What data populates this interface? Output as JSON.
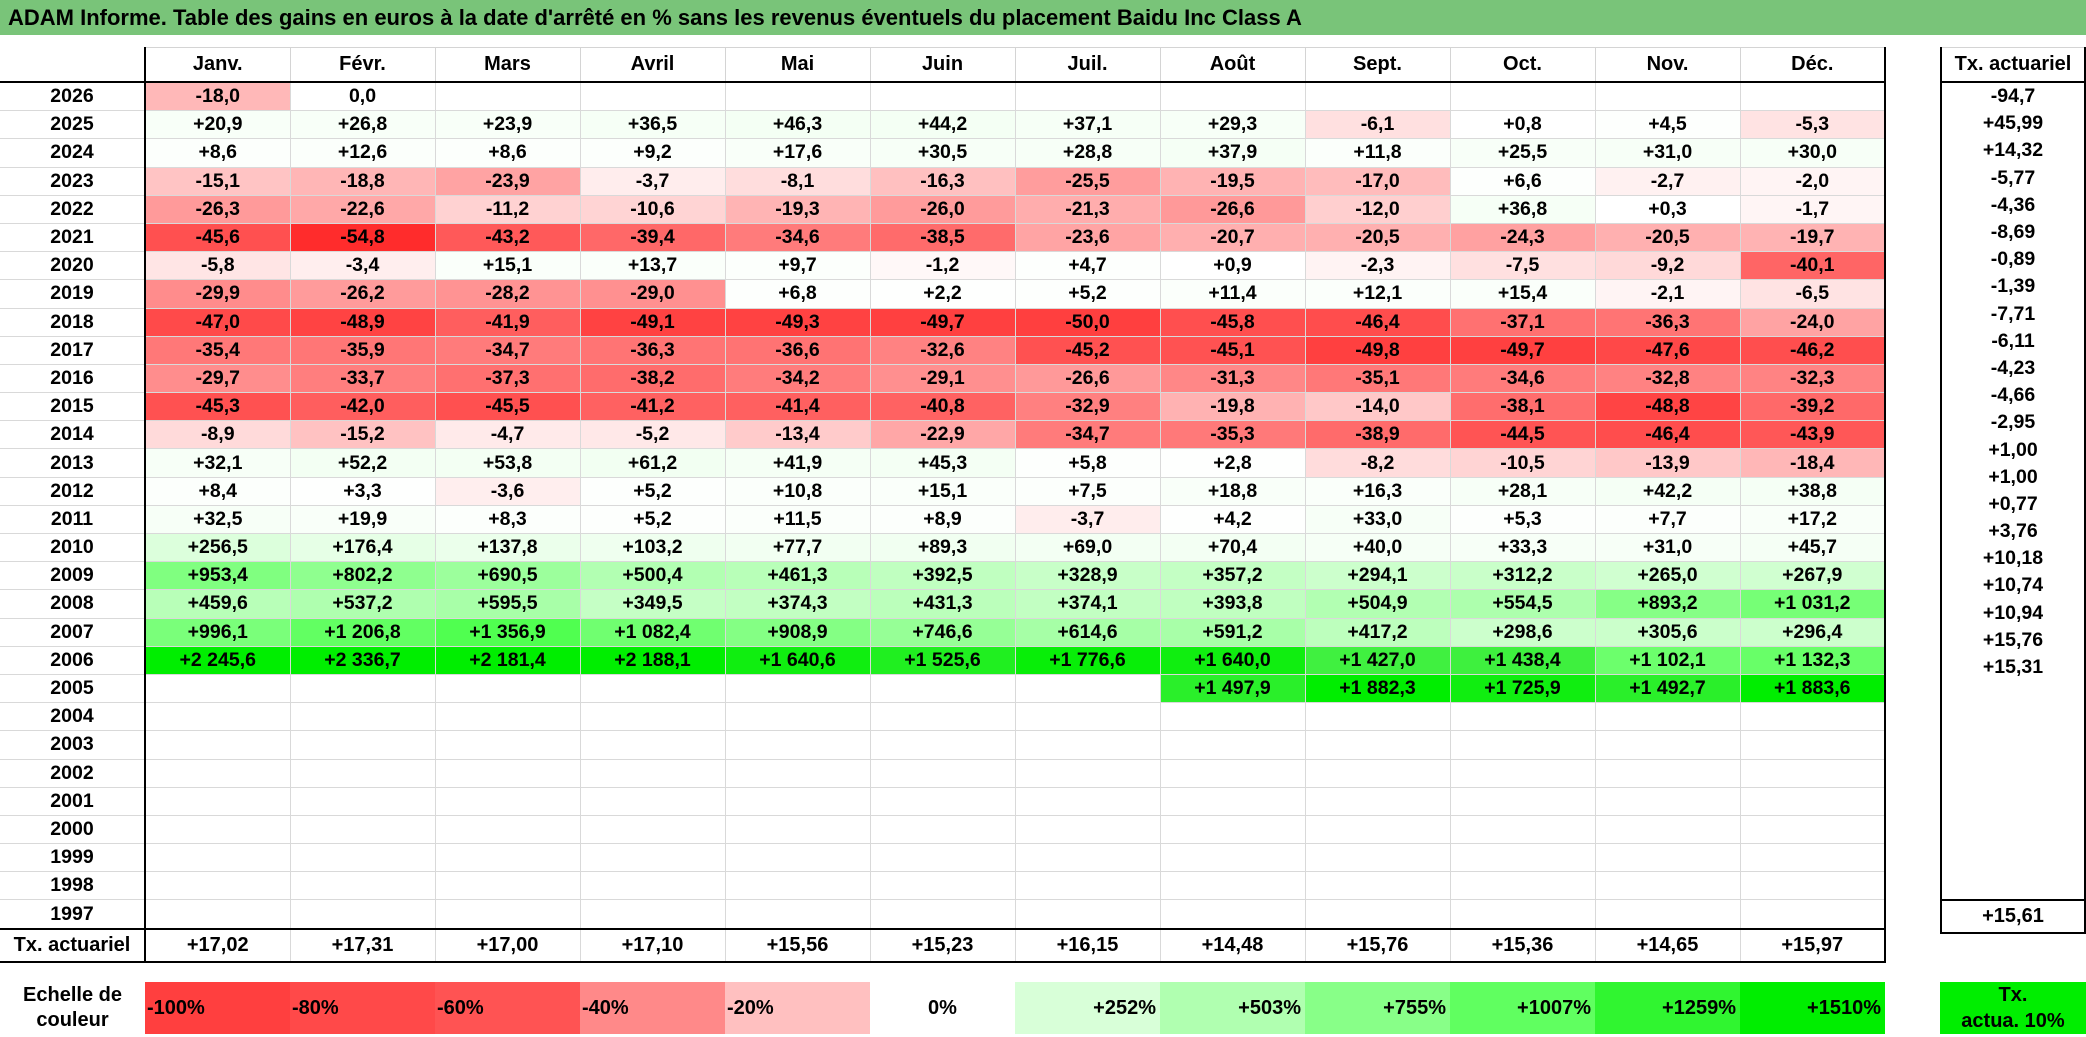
{
  "title": "ADAM Informe. Table des gains en euros à la date d'arrêté en % sans les revenus éventuels du placement Baidu Inc Class A",
  "months": [
    "Janv.",
    "Févr.",
    "Mars",
    "Avril",
    "Mai",
    "Juin",
    "Juil.",
    "Août",
    "Sept.",
    "Oct.",
    "Nov.",
    "Déc."
  ],
  "rate_header": "Tx. actuariel",
  "rows": [
    {
      "year": "2026",
      "cells": [
        "-18,0",
        "0,0",
        "",
        "",
        "",
        "",
        "",
        "",
        "",
        "",
        "",
        ""
      ],
      "colors": [
        "#ffb8b8",
        "#ffffff",
        "",
        "",
        "",
        "",
        "",
        "",
        "",
        "",
        "",
        ""
      ],
      "rate": "-94,7"
    },
    {
      "year": "2025",
      "cells": [
        "+20,9",
        "+26,8",
        "+23,9",
        "+36,5",
        "+46,3",
        "+44,2",
        "+37,1",
        "+29,3",
        "-6,1",
        "+0,8",
        "+4,5",
        "-5,3"
      ],
      "colors": [
        "#f8fff8",
        "#f8fff8",
        "#f8fff8",
        "#f6fff6",
        "#f4fff4",
        "#f4fff4",
        "#f6fff6",
        "#f7fff7",
        "#ffe0e0",
        "#ffffff",
        "#fdfffd",
        "#ffe3e3"
      ],
      "rate": "+45,99"
    },
    {
      "year": "2024",
      "cells": [
        "+8,6",
        "+12,6",
        "+8,6",
        "+9,2",
        "+17,6",
        "+30,5",
        "+28,8",
        "+37,9",
        "+11,8",
        "+25,5",
        "+31,0",
        "+30,0"
      ],
      "colors": [
        "#fcfffc",
        "#fbfffb",
        "#fcfffc",
        "#fcfffc",
        "#f9fff9",
        "#f7fff7",
        "#f7fff7",
        "#f5fff5",
        "#fbfffb",
        "#f8fff8",
        "#f7fff7",
        "#f7fff7"
      ],
      "rate": "+14,32"
    },
    {
      "year": "2023",
      "cells": [
        "-15,1",
        "-18,8",
        "-23,9",
        "-3,7",
        "-8,1",
        "-16,3",
        "-25,5",
        "-19,5",
        "-17,0",
        "+6,6",
        "-2,7",
        "-2,0"
      ],
      "colors": [
        "#ffc4c4",
        "#ffb6b6",
        "#ffa3a3",
        "#ffeded",
        "#ffdddd",
        "#ffc0c0",
        "#ff9d9d",
        "#ffb3b3",
        "#ffbcbc",
        "#fdfffd",
        "#fff1f1",
        "#fff4f4"
      ],
      "rate": "-5,77"
    },
    {
      "year": "2022",
      "cells": [
        "-26,3",
        "-22,6",
        "-11,2",
        "-10,6",
        "-19,3",
        "-26,0",
        "-21,3",
        "-26,6",
        "-12,0",
        "+36,8",
        "+0,3",
        "-1,7"
      ],
      "colors": [
        "#ff9a9a",
        "#ffa8a8",
        "#ffd2d2",
        "#ffd4d4",
        "#ffb4b4",
        "#ff9b9b",
        "#ffadad",
        "#ff9999",
        "#ffcfcf",
        "#f6fff6",
        "#ffffff",
        "#fff5f5"
      ],
      "rate": "-4,36"
    },
    {
      "year": "2021",
      "cells": [
        "-45,6",
        "-54,8",
        "-43,2",
        "-39,4",
        "-34,6",
        "-38,5",
        "-23,6",
        "-20,7",
        "-20,5",
        "-24,3",
        "-20,5",
        "-19,7"
      ],
      "colors": [
        "#ff5050",
        "#ff2c2c",
        "#ff5959",
        "#ff6868",
        "#ff7b7b",
        "#ff6b6b",
        "#ffa4a4",
        "#ffafaf",
        "#ffb0b0",
        "#ffa1a1",
        "#ffb0b0",
        "#ffb3b3"
      ],
      "rate": "-8,69"
    },
    {
      "year": "2020",
      "cells": [
        "-5,8",
        "-3,4",
        "+15,1",
        "+13,7",
        "+9,7",
        "-1,2",
        "+4,7",
        "+0,9",
        "-2,3",
        "-7,5",
        "-9,2",
        "-40,1"
      ],
      "colors": [
        "#ffe5e5",
        "#ffeeee",
        "#fafffa",
        "#fafffa",
        "#fcfffc",
        "#fff8f8",
        "#fdfffd",
        "#ffffff",
        "#fff3f3",
        "#ffe0e0",
        "#ffd9d9",
        "#ff6565"
      ],
      "rate": "-0,89"
    },
    {
      "year": "2019",
      "cells": [
        "-29,9",
        "-26,2",
        "-28,2",
        "-29,0",
        "+6,8",
        "+2,2",
        "+5,2",
        "+11,4",
        "+12,1",
        "+15,4",
        "-2,1",
        "-6,5"
      ],
      "colors": [
        "#ff8c8c",
        "#ff9b9b",
        "#ff9393",
        "#ff9090",
        "#fdfffd",
        "#fefffe",
        "#fdfffd",
        "#fbfffb",
        "#fbfffb",
        "#fafffa",
        "#fff4f4",
        "#ffe3e3"
      ],
      "rate": "-1,39"
    },
    {
      "year": "2018",
      "cells": [
        "-47,0",
        "-48,9",
        "-41,9",
        "-49,1",
        "-49,3",
        "-49,7",
        "-50,0",
        "-45,8",
        "-46,4",
        "-37,1",
        "-36,3",
        "-24,0"
      ],
      "colors": [
        "#ff4a4a",
        "#ff4343",
        "#ff5e5e",
        "#ff4242",
        "#ff4242",
        "#ff4040",
        "#ff3f3f",
        "#ff4f4f",
        "#ff4d4d",
        "#ff7171",
        "#ff7474",
        "#ffa3a3"
      ],
      "rate": "-7,71"
    },
    {
      "year": "2017",
      "cells": [
        "-35,4",
        "-35,9",
        "-34,7",
        "-36,3",
        "-36,6",
        "-32,6",
        "-45,2",
        "-45,1",
        "-49,8",
        "-49,7",
        "-47,6",
        "-46,2"
      ],
      "colors": [
        "#ff7878",
        "#ff7676",
        "#ff7b7b",
        "#ff7474",
        "#ff7373",
        "#ff8282",
        "#ff5151",
        "#ff5252",
        "#ff4040",
        "#ff4040",
        "#ff4848",
        "#ff4e4e"
      ],
      "rate": "-6,11"
    },
    {
      "year": "2016",
      "cells": [
        "-29,7",
        "-33,7",
        "-37,3",
        "-38,2",
        "-34,2",
        "-29,1",
        "-26,6",
        "-31,3",
        "-35,1",
        "-34,6",
        "-32,8",
        "-32,3"
      ],
      "colors": [
        "#ff8d8d",
        "#ff7e7e",
        "#ff7070",
        "#ff6c6c",
        "#ff7c7c",
        "#ff8f8f",
        "#ff9999",
        "#ff8787",
        "#ff7878",
        "#ff7b7b",
        "#ff8282",
        "#ff8383"
      ],
      "rate": "-4,23"
    },
    {
      "year": "2015",
      "cells": [
        "-45,3",
        "-42,0",
        "-45,5",
        "-41,2",
        "-41,4",
        "-40,8",
        "-32,9",
        "-19,8",
        "-14,0",
        "-38,1",
        "-48,8",
        "-39,2"
      ],
      "colors": [
        "#ff5151",
        "#ff5e5e",
        "#ff5050",
        "#ff6161",
        "#ff6060",
        "#ff6262",
        "#ff8080",
        "#ffb2b2",
        "#ffc8c8",
        "#ff6d6d",
        "#ff4444",
        "#ff6969"
      ],
      "rate": "-4,66"
    },
    {
      "year": "2014",
      "cells": [
        "-8,9",
        "-15,2",
        "-4,7",
        "-5,2",
        "-13,4",
        "-22,9",
        "-34,7",
        "-35,3",
        "-38,9",
        "-44,5",
        "-46,4",
        "-43,9"
      ],
      "colors": [
        "#ffdada",
        "#ffc2c2",
        "#ffeaea",
        "#ffe8e8",
        "#ffcbcb",
        "#ffa7a7",
        "#ff7b7b",
        "#ff7979",
        "#ff6b6b",
        "#ff5454",
        "#ff4d4d",
        "#ff5757"
      ],
      "rate": "-2,95"
    },
    {
      "year": "2013",
      "cells": [
        "+32,1",
        "+52,2",
        "+53,8",
        "+61,2",
        "+41,9",
        "+45,3",
        "+5,8",
        "+2,8",
        "-8,2",
        "-10,5",
        "-13,9",
        "-18,4"
      ],
      "colors": [
        "#f7fff7",
        "#f3fff3",
        "#f3fff3",
        "#f2fff2",
        "#f5fff5",
        "#f4fff4",
        "#fdfffd",
        "#fefffe",
        "#ffdcdc",
        "#ffd4d4",
        "#ffc8c8",
        "#ffb7b7"
      ],
      "rate": "+1,00"
    },
    {
      "year": "2012",
      "cells": [
        "+8,4",
        "+3,3",
        "-3,6",
        "+5,2",
        "+10,8",
        "+15,1",
        "+7,5",
        "+18,8",
        "+16,3",
        "+28,1",
        "+42,2",
        "+38,8"
      ],
      "colors": [
        "#fcfffc",
        "#fefffe",
        "#ffeeee",
        "#fdfffd",
        "#fbfffb",
        "#fafffa",
        "#fcfffc",
        "#f9fff9",
        "#fafffa",
        "#f7fff7",
        "#f5fff5",
        "#f5fff5"
      ],
      "rate": "+1,00"
    },
    {
      "year": "2011",
      "cells": [
        "+32,5",
        "+19,9",
        "+8,3",
        "+5,2",
        "+11,5",
        "+8,9",
        "-3,7",
        "+4,2",
        "+33,0",
        "+5,3",
        "+7,7",
        "+17,2"
      ],
      "colors": [
        "#f7fff7",
        "#f9fff9",
        "#fcfffc",
        "#fdfffd",
        "#fbfffb",
        "#fcfffc",
        "#ffeded",
        "#fefffe",
        "#f7fff7",
        "#fdfffd",
        "#fcfffc",
        "#f9fff9"
      ],
      "rate": "+0,77"
    },
    {
      "year": "2010",
      "cells": [
        "+256,5",
        "+176,4",
        "+137,8",
        "+103,2",
        "+77,7",
        "+89,3",
        "+69,0",
        "+70,4",
        "+40,0",
        "+33,3",
        "+31,0",
        "+45,7"
      ],
      "colors": [
        "#dcffdc",
        "#e6ffe6",
        "#ebffeb",
        "#efffef",
        "#f2fff2",
        "#f1fff1",
        "#f3fff3",
        "#f3fff3",
        "#f6fff6",
        "#f7fff7",
        "#f7fff7",
        "#f5fff5"
      ],
      "rate": "+3,76"
    },
    {
      "year": "2009",
      "cells": [
        "+953,4",
        "+802,2",
        "+690,5",
        "+500,4",
        "+461,3",
        "+392,5",
        "+328,9",
        "+357,2",
        "+294,1",
        "+312,2",
        "+265,0",
        "+267,9"
      ],
      "colors": [
        "#80ff80",
        "#8fff8f",
        "#9cff9c",
        "#b2ffb2",
        "#b8ffb8",
        "#c0ffc0",
        "#c8ffc8",
        "#c4ffc4",
        "#ccffcc",
        "#c9ffc9",
        "#d0ffd0",
        "#d0ffd0"
      ],
      "rate": "+10,18"
    },
    {
      "year": "2008",
      "cells": [
        "+459,6",
        "+537,2",
        "+595,5",
        "+349,5",
        "+374,3",
        "+431,3",
        "+374,1",
        "+393,8",
        "+504,9",
        "+554,5",
        "+893,2",
        "+1 031,2"
      ],
      "colors": [
        "#b8ffb8",
        "#afffaf",
        "#a8ffa8",
        "#c5ffc5",
        "#c2ffc2",
        "#bbffbb",
        "#c2ffc2",
        "#c0ffc0",
        "#b2ffb2",
        "#adffad",
        "#86ff86",
        "#76ff76"
      ],
      "rate": "+10,74"
    },
    {
      "year": "2007",
      "cells": [
        "+996,1",
        "+1 206,8",
        "+1 356,9",
        "+1 082,4",
        "+908,9",
        "+746,6",
        "+614,6",
        "+591,2",
        "+417,2",
        "+298,6",
        "+305,6",
        "+296,4"
      ],
      "colors": [
        "#7aff7a",
        "#62ff62",
        "#50ff50",
        "#70ff70",
        "#84ff84",
        "#96ff96",
        "#a6ffa6",
        "#a8ffa8",
        "#bdffbd",
        "#ccffcc",
        "#cbffcb",
        "#ccffcc"
      ],
      "rate": "+10,94"
    },
    {
      "year": "2006",
      "cells": [
        "+2 245,6",
        "+2 336,7",
        "+2 181,4",
        "+2 188,1",
        "+1 640,6",
        "+1 525,6",
        "+1 776,6",
        "+1 640,0",
        "+1 427,0",
        "+1 438,4",
        "+1 102,1",
        "+1 132,3"
      ],
      "colors": [
        "#00ee00",
        "#00ee00",
        "#00ee00",
        "#00ee00",
        "#10ee10",
        "#20ef20",
        "#08ee08",
        "#10ee10",
        "#40f040",
        "#3ef03e",
        "#6cff6c",
        "#68ff68"
      ],
      "rate": "+15,76"
    },
    {
      "year": "2005",
      "cells": [
        "",
        "",
        "",
        "",
        "",
        "",
        "",
        "+1 497,9",
        "+1 882,3",
        "+1 725,9",
        "+1 492,7",
        "+1 883,6"
      ],
      "colors": [
        "",
        "",
        "",
        "",
        "",
        "",
        "",
        "#2aef2a",
        "#00ee00",
        "#10ee10",
        "#2aef2a",
        "#00ee00"
      ],
      "rate": "+15,31"
    },
    {
      "year": "2004",
      "cells": [
        "",
        "",
        "",
        "",
        "",
        "",
        "",
        "",
        "",
        "",
        "",
        ""
      ],
      "colors": [
        "",
        "",
        "",
        "",
        "",
        "",
        "",
        "",
        "",
        "",
        "",
        ""
      ],
      "rate": ""
    },
    {
      "year": "2003",
      "cells": [
        "",
        "",
        "",
        "",
        "",
        "",
        "",
        "",
        "",
        "",
        "",
        ""
      ],
      "colors": [
        "",
        "",
        "",
        "",
        "",
        "",
        "",
        "",
        "",
        "",
        "",
        ""
      ],
      "rate": ""
    },
    {
      "year": "2002",
      "cells": [
        "",
        "",
        "",
        "",
        "",
        "",
        "",
        "",
        "",
        "",
        "",
        ""
      ],
      "colors": [
        "",
        "",
        "",
        "",
        "",
        "",
        "",
        "",
        "",
        "",
        "",
        ""
      ],
      "rate": ""
    },
    {
      "year": "2001",
      "cells": [
        "",
        "",
        "",
        "",
        "",
        "",
        "",
        "",
        "",
        "",
        "",
        ""
      ],
      "colors": [
        "",
        "",
        "",
        "",
        "",
        "",
        "",
        "",
        "",
        "",
        "",
        ""
      ],
      "rate": ""
    },
    {
      "year": "2000",
      "cells": [
        "",
        "",
        "",
        "",
        "",
        "",
        "",
        "",
        "",
        "",
        "",
        ""
      ],
      "colors": [
        "",
        "",
        "",
        "",
        "",
        "",
        "",
        "",
        "",
        "",
        "",
        ""
      ],
      "rate": ""
    },
    {
      "year": "1999",
      "cells": [
        "",
        "",
        "",
        "",
        "",
        "",
        "",
        "",
        "",
        "",
        "",
        ""
      ],
      "colors": [
        "",
        "",
        "",
        "",
        "",
        "",
        "",
        "",
        "",
        "",
        "",
        ""
      ],
      "rate": ""
    },
    {
      "year": "1998",
      "cells": [
        "",
        "",
        "",
        "",
        "",
        "",
        "",
        "",
        "",
        "",
        "",
        ""
      ],
      "colors": [
        "",
        "",
        "",
        "",
        "",
        "",
        "",
        "",
        "",
        "",
        "",
        ""
      ],
      "rate": ""
    },
    {
      "year": "1997",
      "cells": [
        "",
        "",
        "",
        "",
        "",
        "",
        "",
        "",
        "",
        "",
        "",
        ""
      ],
      "colors": [
        "",
        "",
        "",
        "",
        "",
        "",
        "",
        "",
        "",
        "",
        "",
        ""
      ],
      "rate": ""
    }
  ],
  "totals": {
    "label": "Tx. actuariel",
    "cells": [
      "+17,02",
      "+17,31",
      "+17,00",
      "+17,10",
      "+15,56",
      "+15,23",
      "+16,15",
      "+14,48",
      "+15,76",
      "+15,36",
      "+14,65",
      "+15,97"
    ],
    "rate": "+15,61"
  },
  "legend": {
    "label": "Echelle de couleur",
    "items": [
      {
        "text": "-100%",
        "color": "#ff3f3f",
        "kind": "neg"
      },
      {
        "text": "-80%",
        "color": "#ff4949",
        "kind": "neg"
      },
      {
        "text": "-60%",
        "color": "#ff5353",
        "kind": "neg"
      },
      {
        "text": "-40%",
        "color": "#ff8989",
        "kind": "neg"
      },
      {
        "text": "-20%",
        "color": "#ffc0c0",
        "kind": "neg"
      },
      {
        "text": "0%",
        "color": "#ffffff",
        "kind": "zero"
      },
      {
        "text": "+252%",
        "color": "#d8ffd8",
        "kind": "pos"
      },
      {
        "text": "+503%",
        "color": "#b0ffb0",
        "kind": "pos"
      },
      {
        "text": "+755%",
        "color": "#88ff88",
        "kind": "pos"
      },
      {
        "text": "+1007%",
        "color": "#60ff60",
        "kind": "pos"
      },
      {
        "text": "+1259%",
        "color": "#30f530",
        "kind": "pos"
      },
      {
        "text": "+1510%",
        "color": "#00ee00",
        "kind": "pos"
      }
    ],
    "actua_line1": "Tx.",
    "actua_line2": "actua. 10%",
    "actua_color": "#00ee00"
  }
}
